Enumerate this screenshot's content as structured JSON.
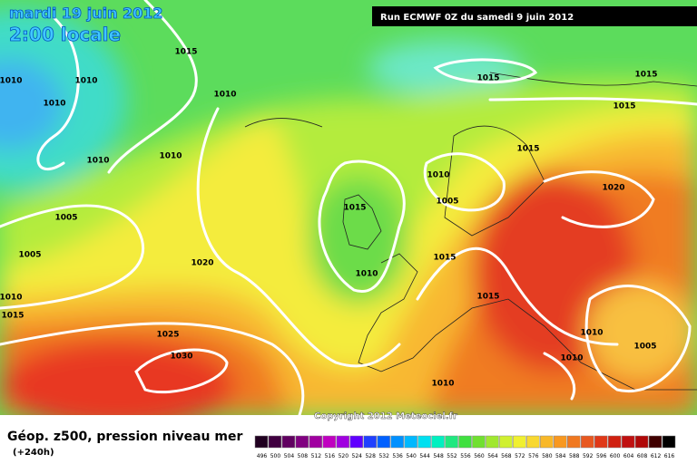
{
  "header": {
    "date": "mardi 19 juin 2012",
    "time": "2:00 locale",
    "run": "Run ECMWF 0Z du samedi 9 juin 2012"
  },
  "isobar_labels": [
    "1015",
    "1010",
    "1010",
    "1010",
    "1010",
    "1010",
    "1010",
    "1015",
    "1015",
    "1015",
    "1015",
    "1010",
    "1005",
    "1020",
    "1015",
    "1005",
    "1005",
    "1020",
    "1015",
    "1010",
    "1010",
    "1015",
    "1015",
    "1025",
    "1030",
    "1010",
    "1005",
    "1010",
    "1010"
  ],
  "copyright": "Copyright 2012 Meteociel.fr",
  "legend": {
    "title": "Géop. z500, pression niveau mer",
    "subtitle": "(+240h)",
    "scale": [
      "496",
      "500",
      "504",
      "508",
      "512",
      "516",
      "520",
      "524",
      "528",
      "532",
      "536",
      "540",
      "544",
      "548",
      "552",
      "556",
      "560",
      "564",
      "568",
      "572",
      "576",
      "580",
      "584",
      "588",
      "592",
      "596",
      "600",
      "604",
      "608",
      "612",
      "616"
    ]
  }
}
